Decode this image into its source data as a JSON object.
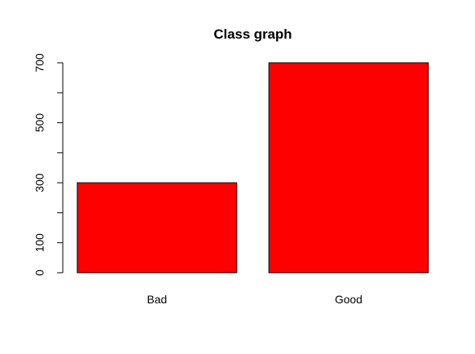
{
  "chart_data": {
    "type": "bar",
    "title": "Class graph",
    "xlabel": "",
    "ylabel": "",
    "categories": [
      "Bad",
      "Good"
    ],
    "values": [
      300,
      700
    ],
    "ylim": [
      0,
      700
    ],
    "y_ticks": [
      0,
      100,
      200,
      300,
      400,
      500,
      600,
      700
    ],
    "y_tick_labels": [
      "0",
      "100",
      "",
      "300",
      "",
      "500",
      "",
      "700"
    ],
    "bar_color": "#ff0000",
    "bar_border_color": "#000000",
    "grid": false,
    "legend": "none"
  }
}
